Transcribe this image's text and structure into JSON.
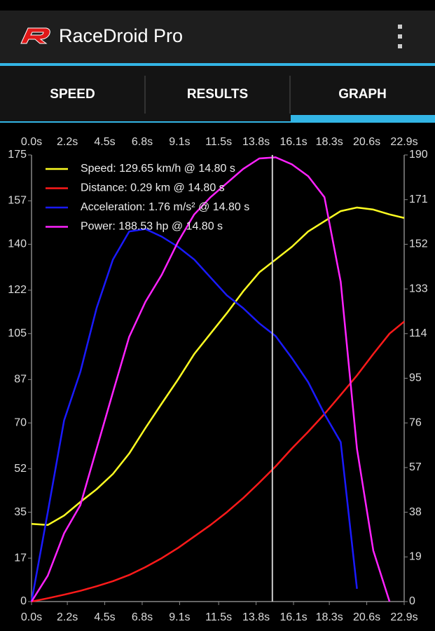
{
  "app_bar": {
    "title": "RaceDroid Pro"
  },
  "tabs": [
    "SPEED",
    "RESULTS",
    "GRAPH"
  ],
  "selected_tab": 2,
  "chart_data": {
    "type": "line",
    "x": [
      0,
      1,
      2,
      3,
      4,
      5,
      6,
      7,
      8,
      9,
      10,
      11,
      12,
      13,
      14,
      15,
      16,
      17,
      18,
      19,
      20,
      21,
      22,
      22.9
    ],
    "xlim": [
      0,
      22.9
    ],
    "xticks": [
      {
        "value": 0,
        "label": "0.0s"
      },
      {
        "value": 2.2,
        "label": "2.2s"
      },
      {
        "value": 4.5,
        "label": "4.5s"
      },
      {
        "value": 6.8,
        "label": "6.8s"
      },
      {
        "value": 9.1,
        "label": "9.1s"
      },
      {
        "value": 11.5,
        "label": "11.5s"
      },
      {
        "value": 13.8,
        "label": "13.8s"
      },
      {
        "value": 16.1,
        "label": "16.1s"
      },
      {
        "value": 18.3,
        "label": "18.3s"
      },
      {
        "value": 20.6,
        "label": "20.6s"
      },
      {
        "value": 22.9,
        "label": "22.9s"
      }
    ],
    "ylim": [
      0,
      175
    ],
    "yticks": [
      0,
      17,
      35,
      52,
      70,
      87,
      105,
      122,
      140,
      157,
      175
    ],
    "y2lim": [
      0,
      190
    ],
    "y2ticks": [
      0,
      19,
      38,
      57,
      76,
      95,
      114,
      133,
      152,
      171,
      190
    ],
    "cursor": 14.8,
    "series": [
      {
        "name": "Speed: 129.65 km/h @ 14.80 s",
        "color": "#ffff22",
        "values": [
          30.4,
          30,
          33.7,
          39,
          44,
          50,
          58,
          68,
          77.6,
          87,
          97,
          105,
          113,
          121.5,
          129,
          134,
          139,
          145,
          149,
          153,
          154.4,
          153.6,
          151.7,
          150.3
        ]
      },
      {
        "name": "Distance: 0.29 km @ 14.80 s",
        "color": "#ff1a1a",
        "values": [
          0,
          1.3,
          2.7,
          4.2,
          6,
          8,
          10.4,
          13.5,
          17,
          21,
          25.5,
          30,
          35,
          40.5,
          46.6,
          53,
          60,
          66.5,
          73.5,
          81,
          88.6,
          97,
          105,
          109.7
        ]
      },
      {
        "name": "Acceleration: 1.76 m/s² @ 14.80 s",
        "color": "#1a1aff",
        "values": [
          0,
          35,
          71,
          90,
          115,
          134,
          145,
          146,
          143,
          139,
          134,
          127,
          120,
          115,
          109,
          104,
          95.4,
          86,
          73.5,
          62.5,
          5,
          null,
          null,
          null
        ]
      },
      {
        "name": "Power: 188.53 hp @ 14.80 s",
        "color": "#ff22ff",
        "axis": "y2",
        "values": [
          0,
          11,
          29,
          41,
          65,
          89,
          112.6,
          127.5,
          139,
          153,
          164.7,
          172,
          178,
          184,
          188.5,
          189,
          186,
          181,
          172,
          136,
          65,
          21.7,
          0,
          null
        ]
      }
    ]
  }
}
